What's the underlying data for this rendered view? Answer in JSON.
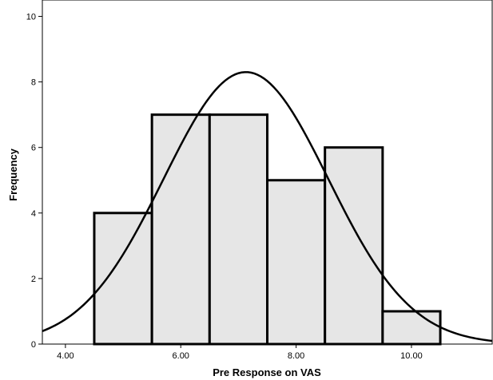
{
  "chart_data": {
    "type": "bar",
    "subtype": "histogram",
    "title": "",
    "xlabel": "Pre Response on VAS",
    "ylabel": "Frequency",
    "bins": [
      {
        "start": 4.5,
        "end": 5.5,
        "value": 4
      },
      {
        "start": 5.5,
        "end": 6.5,
        "value": 7
      },
      {
        "start": 6.5,
        "end": 7.5,
        "value": 7
      },
      {
        "start": 7.5,
        "end": 8.5,
        "value": 5
      },
      {
        "start": 8.5,
        "end": 9.5,
        "value": 6
      },
      {
        "start": 9.5,
        "end": 10.5,
        "value": 1
      }
    ],
    "xlim": [
      3.6,
      11.4
    ],
    "ylim": [
      0,
      10.5
    ],
    "xticks": [
      {
        "value": 4,
        "label": "4.00"
      },
      {
        "value": 6,
        "label": "6.00"
      },
      {
        "value": 8,
        "label": "8.00"
      },
      {
        "value": 10,
        "label": "10.00"
      }
    ],
    "yticks": [
      {
        "value": 0,
        "label": "0"
      },
      {
        "value": 2,
        "label": "2"
      },
      {
        "value": 4,
        "label": "4"
      },
      {
        "value": 6,
        "label": "6"
      },
      {
        "value": 8,
        "label": "8"
      },
      {
        "value": 10,
        "label": "10"
      }
    ],
    "normal_curve": {
      "mean": 7.13,
      "sd": 1.43,
      "peak_frequency": 8.3
    },
    "grid": false,
    "bar_fill": "#e6e6e6",
    "bar_stroke": "#000000"
  }
}
